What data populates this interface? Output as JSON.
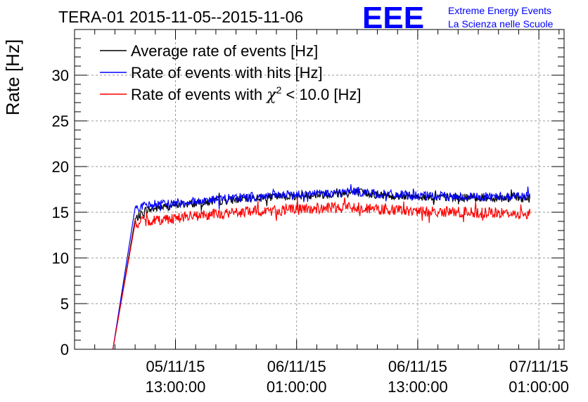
{
  "chart_data": {
    "type": "line",
    "title": "TERA-01 2015-11-05--2015-11-06",
    "xlabel": "",
    "ylabel": "Rate [Hz]",
    "ylim": [
      0,
      35
    ],
    "yticks": [
      0,
      5,
      10,
      15,
      20,
      25,
      30
    ],
    "x_unit": "hours since 2015-11-05 00:00",
    "xlim": [
      2,
      50.5
    ],
    "xticks": [
      {
        "x": 12,
        "line1": "05/11/15",
        "line2": "13:00:00"
      },
      {
        "x": 24,
        "line1": "06/11/15",
        "line2": "01:00:00"
      },
      {
        "x": 36,
        "line1": "06/11/15",
        "line2": "13:00:00"
      },
      {
        "x": 48,
        "line1": "07/11/15",
        "line2": "01:00:00"
      }
    ],
    "grid": true,
    "legend_position": "top-left",
    "series": [
      {
        "name": "Average rate of events [Hz]",
        "color": "#000000",
        "x": [
          5.8,
          8.0,
          9.0,
          12,
          16,
          20,
          24,
          28,
          30,
          32,
          36,
          40,
          44,
          47.1
        ],
        "values": [
          0,
          14.2,
          15.2,
          15.8,
          16.2,
          16.6,
          16.8,
          17.0,
          17.2,
          16.9,
          16.7,
          16.6,
          16.6,
          16.5
        ],
        "noise": 0.45
      },
      {
        "name": "Rate of events with hits [Hz]",
        "color": "#0000ff",
        "x": [
          5.8,
          8.0,
          9.0,
          12,
          16,
          20,
          24,
          28,
          30,
          32,
          36,
          40,
          44,
          47.1
        ],
        "values": [
          0,
          15.5,
          15.7,
          16.0,
          16.4,
          16.7,
          16.9,
          17.1,
          17.3,
          17.0,
          16.8,
          16.7,
          16.7,
          16.8
        ],
        "noise": 0.5
      },
      {
        "name": "Rate of events with χ² < 10.0 [Hz]",
        "color": "#ff0000",
        "x": [
          5.8,
          8.0,
          9.0,
          12,
          16,
          20,
          24,
          28,
          30,
          32,
          36,
          40,
          44,
          47.1
        ],
        "values": [
          0,
          13.8,
          14.0,
          14.4,
          14.8,
          15.1,
          15.3,
          15.5,
          15.6,
          15.3,
          15.1,
          15.0,
          14.9,
          14.8
        ],
        "noise": 0.6
      }
    ],
    "legend_labels": [
      {
        "main": "Average rate of events [Hz]"
      },
      {
        "main": "Rate of events with hits [Hz]"
      },
      {
        "pre": "Rate of events with ",
        "chi": "χ",
        "sup": "2",
        "post": " < 10.0 [Hz]"
      }
    ]
  },
  "logo": {
    "mark": "EEE",
    "line1": "Extreme Energy Events",
    "line2": "La Scienza nelle Scuole",
    "color": "#0000ff"
  }
}
